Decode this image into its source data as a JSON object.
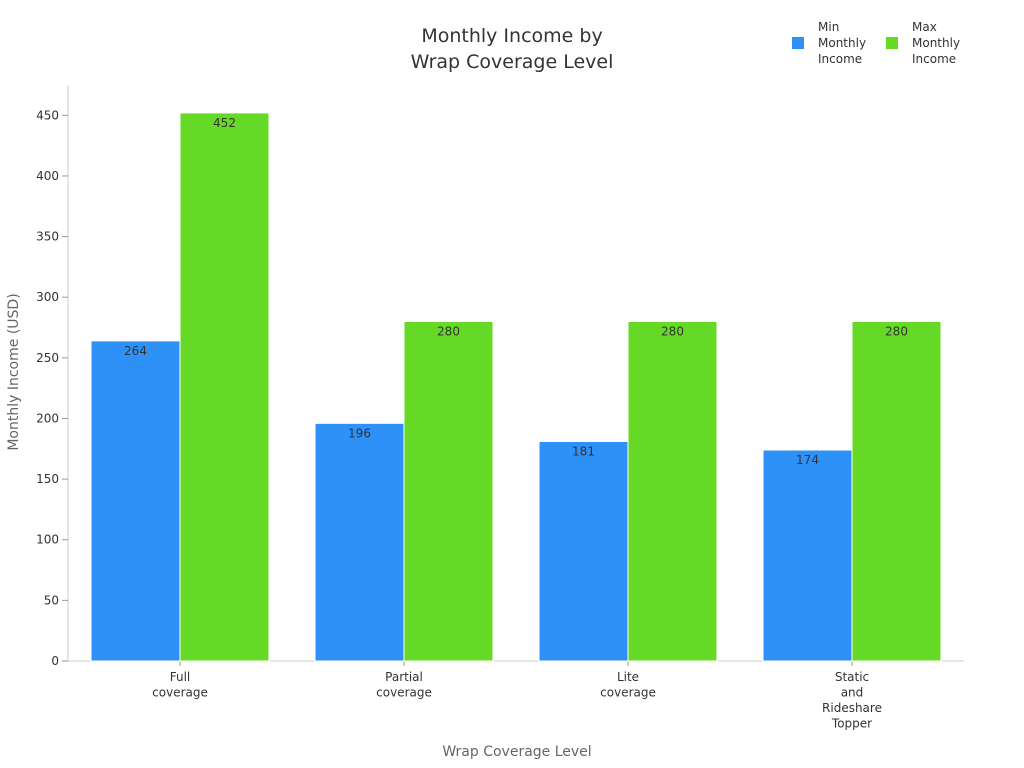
{
  "chart_data": {
    "type": "bar",
    "title_lines": [
      "Monthly Income by",
      "Wrap Coverage Level"
    ],
    "xlabel": "Wrap Coverage Level",
    "ylabel": "Monthly Income (USD)",
    "categories": [
      [
        "Full",
        "coverage"
      ],
      [
        "Partial",
        "coverage"
      ],
      [
        "Lite",
        "coverage"
      ],
      [
        "Static",
        "and",
        "Rideshare",
        "Topper"
      ]
    ],
    "series": [
      {
        "name_lines": [
          "Min",
          "Monthly",
          "Income"
        ],
        "color": "#2e91f7",
        "values": [
          264,
          196,
          181,
          174
        ]
      },
      {
        "name_lines": [
          "Max",
          "Monthly",
          "Income"
        ],
        "color": "#66d927",
        "values": [
          452,
          280,
          280,
          280
        ]
      }
    ],
    "ylim": [
      0,
      475
    ],
    "yticks": [
      0,
      50,
      100,
      150,
      200,
      250,
      300,
      350,
      400,
      450
    ],
    "grid": false,
    "legend_position": "top-right",
    "data_labels": true
  }
}
